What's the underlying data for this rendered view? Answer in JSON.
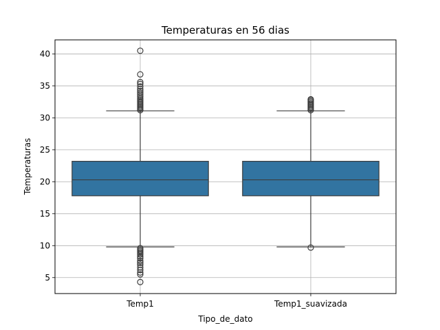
{
  "chart_data": {
    "type": "box",
    "title": "Temperaturas en 56 dias",
    "xlabel": "Tipo_de_dato",
    "ylabel": "Temperaturas",
    "ylim": [
      2.5,
      42.2
    ],
    "yticks": [
      5,
      10,
      15,
      20,
      25,
      30,
      35,
      40
    ],
    "grid": true,
    "colors": {
      "box_fill": "#3274a1",
      "box_edge": "#3d3d3d",
      "grid": "#b0b0b0"
    },
    "categories": [
      "Temp1",
      "Temp1_suavizada"
    ],
    "series": [
      {
        "whisker_low": 9.8,
        "q1": 17.8,
        "median": 20.3,
        "q3": 23.2,
        "whisker_high": 31.1,
        "outliers_high": [
          31.2,
          31.4,
          31.6,
          31.8,
          32.0,
          32.2,
          32.4,
          32.6,
          32.8,
          33.0,
          33.3,
          33.6,
          33.9,
          34.2,
          34.5,
          34.9,
          35.3,
          35.6,
          36.8,
          40.5
        ],
        "outliers_low": [
          9.6,
          9.4,
          9.2,
          9.0,
          8.8,
          8.6,
          8.3,
          8.0,
          7.6,
          7.3,
          7.0,
          6.6,
          6.2,
          5.8,
          5.5,
          4.3
        ]
      },
      {
        "whisker_low": 9.8,
        "q1": 17.8,
        "median": 20.3,
        "q3": 23.2,
        "whisker_high": 31.1,
        "outliers_high": [
          31.2,
          31.4,
          31.6,
          31.8,
          32.0,
          32.2,
          32.4,
          32.6,
          32.8,
          32.9
        ],
        "outliers_low": [
          9.7
        ]
      }
    ]
  }
}
